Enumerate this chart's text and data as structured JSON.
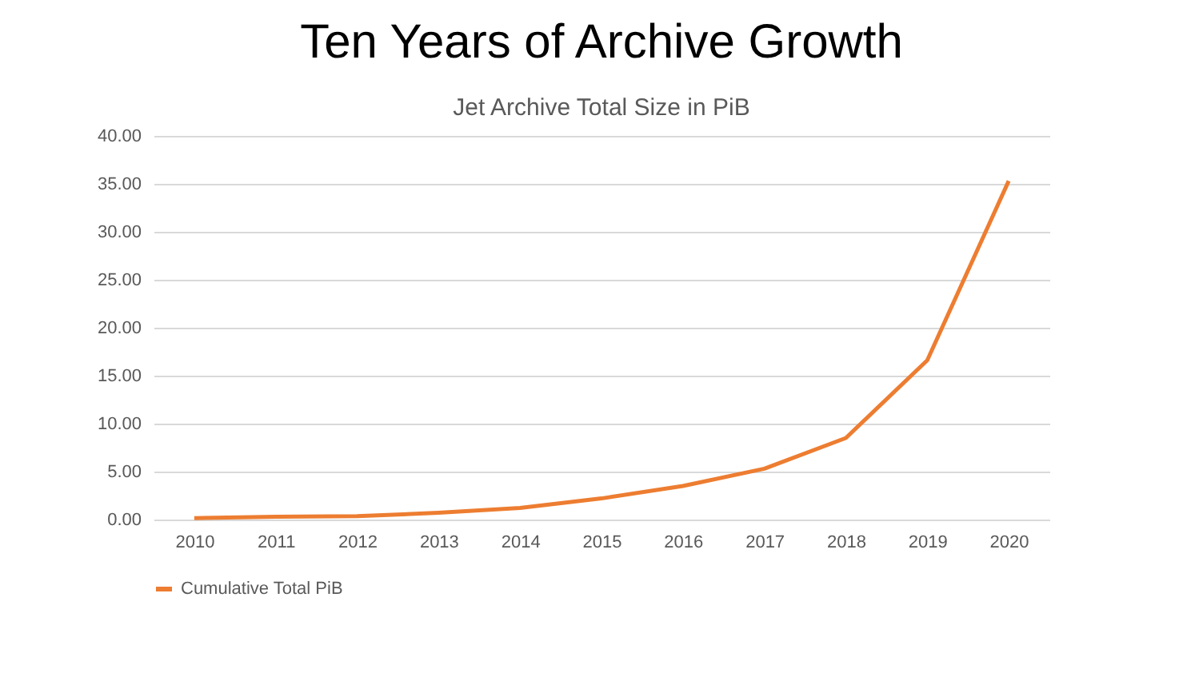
{
  "chart_data": {
    "type": "line",
    "title": "Ten Years of Archive Growth",
    "subtitle": "Jet Archive Total Size in PiB",
    "categories": [
      "2010",
      "2011",
      "2012",
      "2013",
      "2014",
      "2015",
      "2016",
      "2017",
      "2018",
      "2019",
      "2020"
    ],
    "series": [
      {
        "name": "Cumulative Total PiB",
        "color": "#ed7d31",
        "values": [
          0.15,
          0.3,
          0.35,
          0.7,
          1.2,
          2.2,
          3.5,
          5.3,
          8.5,
          16.6,
          35.3
        ]
      }
    ],
    "ylim": [
      0,
      40
    ],
    "yticks": [
      {
        "value": 0,
        "label": "0.00"
      },
      {
        "value": 5,
        "label": "5.00"
      },
      {
        "value": 10,
        "label": "10.00"
      },
      {
        "value": 15,
        "label": "15.00"
      },
      {
        "value": 20,
        "label": "20.00"
      },
      {
        "value": 25,
        "label": "25.00"
      },
      {
        "value": 30,
        "label": "30.00"
      },
      {
        "value": 35,
        "label": "35.00"
      },
      {
        "value": 40,
        "label": "40.00"
      }
    ],
    "grid": "y",
    "legend": "bottom",
    "marker": "none",
    "line_style": "solid"
  }
}
